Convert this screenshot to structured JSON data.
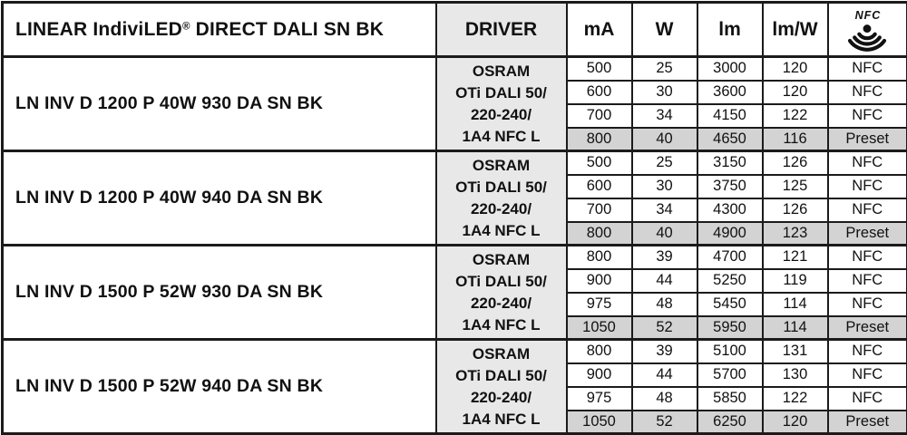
{
  "doc": {
    "header": {
      "product_pre": "LINEAR IndiviLED",
      "product_reg": "®",
      "product_post": " DIRECT DALI SN BK",
      "driver": "DRIVER",
      "col_ma": "mA",
      "col_w": "W",
      "col_lm": "lm",
      "col_lmw": "lm/W",
      "nfc_label": "NFC"
    },
    "colors": {
      "border": "#1b1b1b",
      "text": "#111111",
      "driver_bg": "#e8e8e8",
      "preset_bg": "#d3d3d3"
    },
    "blocks": [
      {
        "product": "LN INV D 1200 P 40W 930 DA SN BK",
        "driver_lines": [
          "OSRAM",
          "OTi DALI 50/",
          "220-240/",
          "1A4 NFC L"
        ],
        "rows": [
          {
            "ma": "500",
            "w": "25",
            "lm": "3000",
            "lmw": "120",
            "mode": "NFC",
            "preset": false
          },
          {
            "ma": "600",
            "w": "30",
            "lm": "3600",
            "lmw": "120",
            "mode": "NFC",
            "preset": false
          },
          {
            "ma": "700",
            "w": "34",
            "lm": "4150",
            "lmw": "122",
            "mode": "NFC",
            "preset": false
          },
          {
            "ma": "800",
            "w": "40",
            "lm": "4650",
            "lmw": "116",
            "mode": "Preset",
            "preset": true
          }
        ]
      },
      {
        "product": "LN INV D 1200 P 40W 940 DA SN BK",
        "driver_lines": [
          "OSRAM",
          "OTi DALI 50/",
          "220-240/",
          "1A4 NFC L"
        ],
        "rows": [
          {
            "ma": "500",
            "w": "25",
            "lm": "3150",
            "lmw": "126",
            "mode": "NFC",
            "preset": false
          },
          {
            "ma": "600",
            "w": "30",
            "lm": "3750",
            "lmw": "125",
            "mode": "NFC",
            "preset": false
          },
          {
            "ma": "700",
            "w": "34",
            "lm": "4300",
            "lmw": "126",
            "mode": "NFC",
            "preset": false
          },
          {
            "ma": "800",
            "w": "40",
            "lm": "4900",
            "lmw": "123",
            "mode": "Preset",
            "preset": true
          }
        ]
      },
      {
        "product": "LN INV D 1500 P 52W 930 DA SN BK",
        "driver_lines": [
          "OSRAM",
          "OTi DALI 50/",
          "220-240/",
          "1A4 NFC L"
        ],
        "rows": [
          {
            "ma": "800",
            "w": "39",
            "lm": "4700",
            "lmw": "121",
            "mode": "NFC",
            "preset": false
          },
          {
            "ma": "900",
            "w": "44",
            "lm": "5250",
            "lmw": "119",
            "mode": "NFC",
            "preset": false
          },
          {
            "ma": "975",
            "w": "48",
            "lm": "5450",
            "lmw": "114",
            "mode": "NFC",
            "preset": false
          },
          {
            "ma": "1050",
            "w": "52",
            "lm": "5950",
            "lmw": "114",
            "mode": "Preset",
            "preset": true
          }
        ]
      },
      {
        "product": "LN INV D 1500 P 52W 940 DA SN BK",
        "driver_lines": [
          "OSRAM",
          "OTi DALI 50/",
          "220-240/",
          "1A4 NFC L"
        ],
        "rows": [
          {
            "ma": "800",
            "w": "39",
            "lm": "5100",
            "lmw": "131",
            "mode": "NFC",
            "preset": false
          },
          {
            "ma": "900",
            "w": "44",
            "lm": "5700",
            "lmw": "130",
            "mode": "NFC",
            "preset": false
          },
          {
            "ma": "975",
            "w": "48",
            "lm": "5850",
            "lmw": "122",
            "mode": "NFC",
            "preset": false
          },
          {
            "ma": "1050",
            "w": "52",
            "lm": "6250",
            "lmw": "120",
            "mode": "Preset",
            "preset": true
          }
        ]
      }
    ]
  }
}
